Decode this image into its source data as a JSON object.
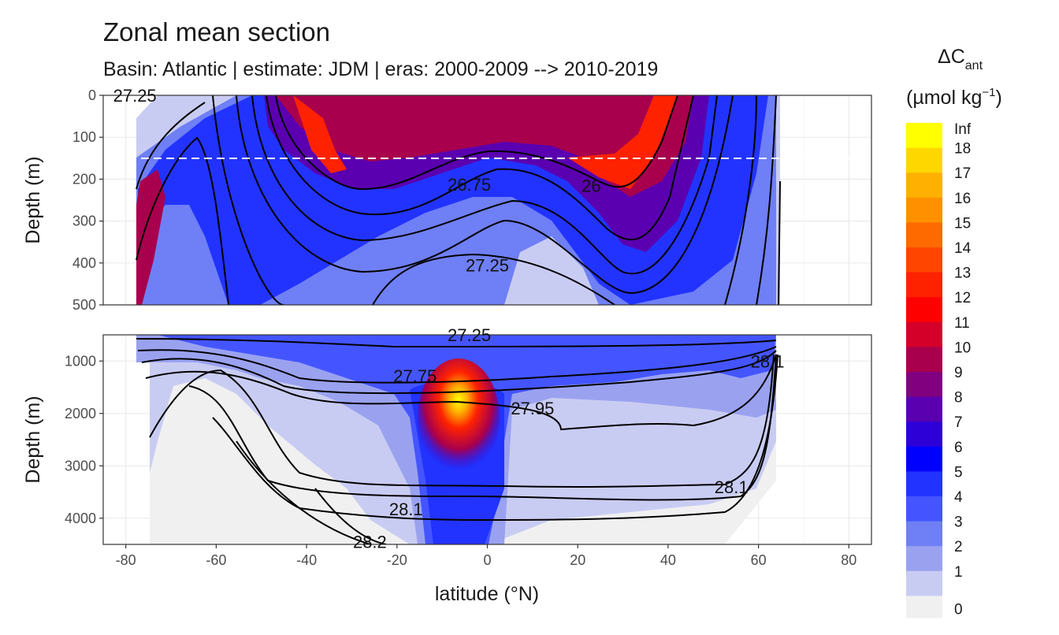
{
  "header": {
    "title": "Zonal mean section",
    "subtitle": "Basin: Atlantic | estimate: JDM  | eras: 2000-2009 --> 2010-2019"
  },
  "chart_data": {
    "type": "heatmap",
    "title": "Zonal mean section",
    "subtitle": "Basin: Atlantic | estimate: JDM  | eras: 2000-2009 --> 2010-2019",
    "xlabel": "latitude (°N)",
    "ylabel": "Depth (m)",
    "xlim": [
      -85,
      85
    ],
    "x_ticks": [
      -80,
      -60,
      -40,
      -20,
      0,
      20,
      40,
      60,
      80
    ],
    "panels": [
      {
        "name": "upper",
        "ylim": [
          0,
          500
        ],
        "y_ticks": [
          0,
          100,
          200,
          300,
          400,
          500
        ],
        "reference_line_depth": 150
      },
      {
        "name": "lower",
        "ylim": [
          500,
          4500
        ],
        "y_ticks": [
          1000,
          2000,
          3000,
          4000
        ]
      }
    ],
    "legend": {
      "title_main": "ΔC",
      "title_sub": "ant",
      "units": "(µmol kg",
      "units_exp": "−1",
      "units_close": ")",
      "breaks": [
        "Inf",
        "18",
        "17",
        "16",
        "15",
        "14",
        "13",
        "12",
        "11",
        "10",
        "9",
        "8",
        "7",
        "6",
        "5",
        "4",
        "3",
        "2",
        "1",
        "0"
      ],
      "colors": [
        "#ffff00",
        "#ffd700",
        "#ffb000",
        "#ff9000",
        "#ff6a00",
        "#ff4500",
        "#ff2200",
        "#ff0000",
        "#d4002a",
        "#a8004d",
        "#800080",
        "#5a00b0",
        "#2d00d8",
        "#0000ff",
        "#2233ff",
        "#4455ff",
        "#6f7ff5",
        "#9aa2f0",
        "#c9ccf2"
      ]
    },
    "background_color": "#f0f0f0",
    "contour_labels": [
      {
        "panel": "upper",
        "text": "26.75",
        "lat": -4,
        "depth": 212
      },
      {
        "panel": "upper",
        "text": "26",
        "lat": 23,
        "depth": 215
      },
      {
        "panel": "upper",
        "text": "27.25",
        "lat": 0,
        "depth": 405
      },
      {
        "panel": "upper",
        "text": "27.25",
        "lat": -78,
        "depth": 0
      },
      {
        "panel": "lower",
        "text": "27.75",
        "lat": -16,
        "depth": 1280
      },
      {
        "panel": "lower",
        "text": "27.95",
        "lat": 10,
        "depth": 1900
      },
      {
        "panel": "lower",
        "text": "28.1",
        "lat": -18,
        "depth": 3820
      },
      {
        "panel": "lower",
        "text": "28.1",
        "lat": 54,
        "depth": 3400
      },
      {
        "panel": "lower",
        "text": "28.2",
        "lat": -26,
        "depth": 4450
      },
      {
        "panel": "lower",
        "text": "27.25",
        "lat": -4,
        "depth": 500
      },
      {
        "panel": "lower",
        "text": "28.1",
        "lat": 62,
        "depth": 1000
      }
    ]
  }
}
